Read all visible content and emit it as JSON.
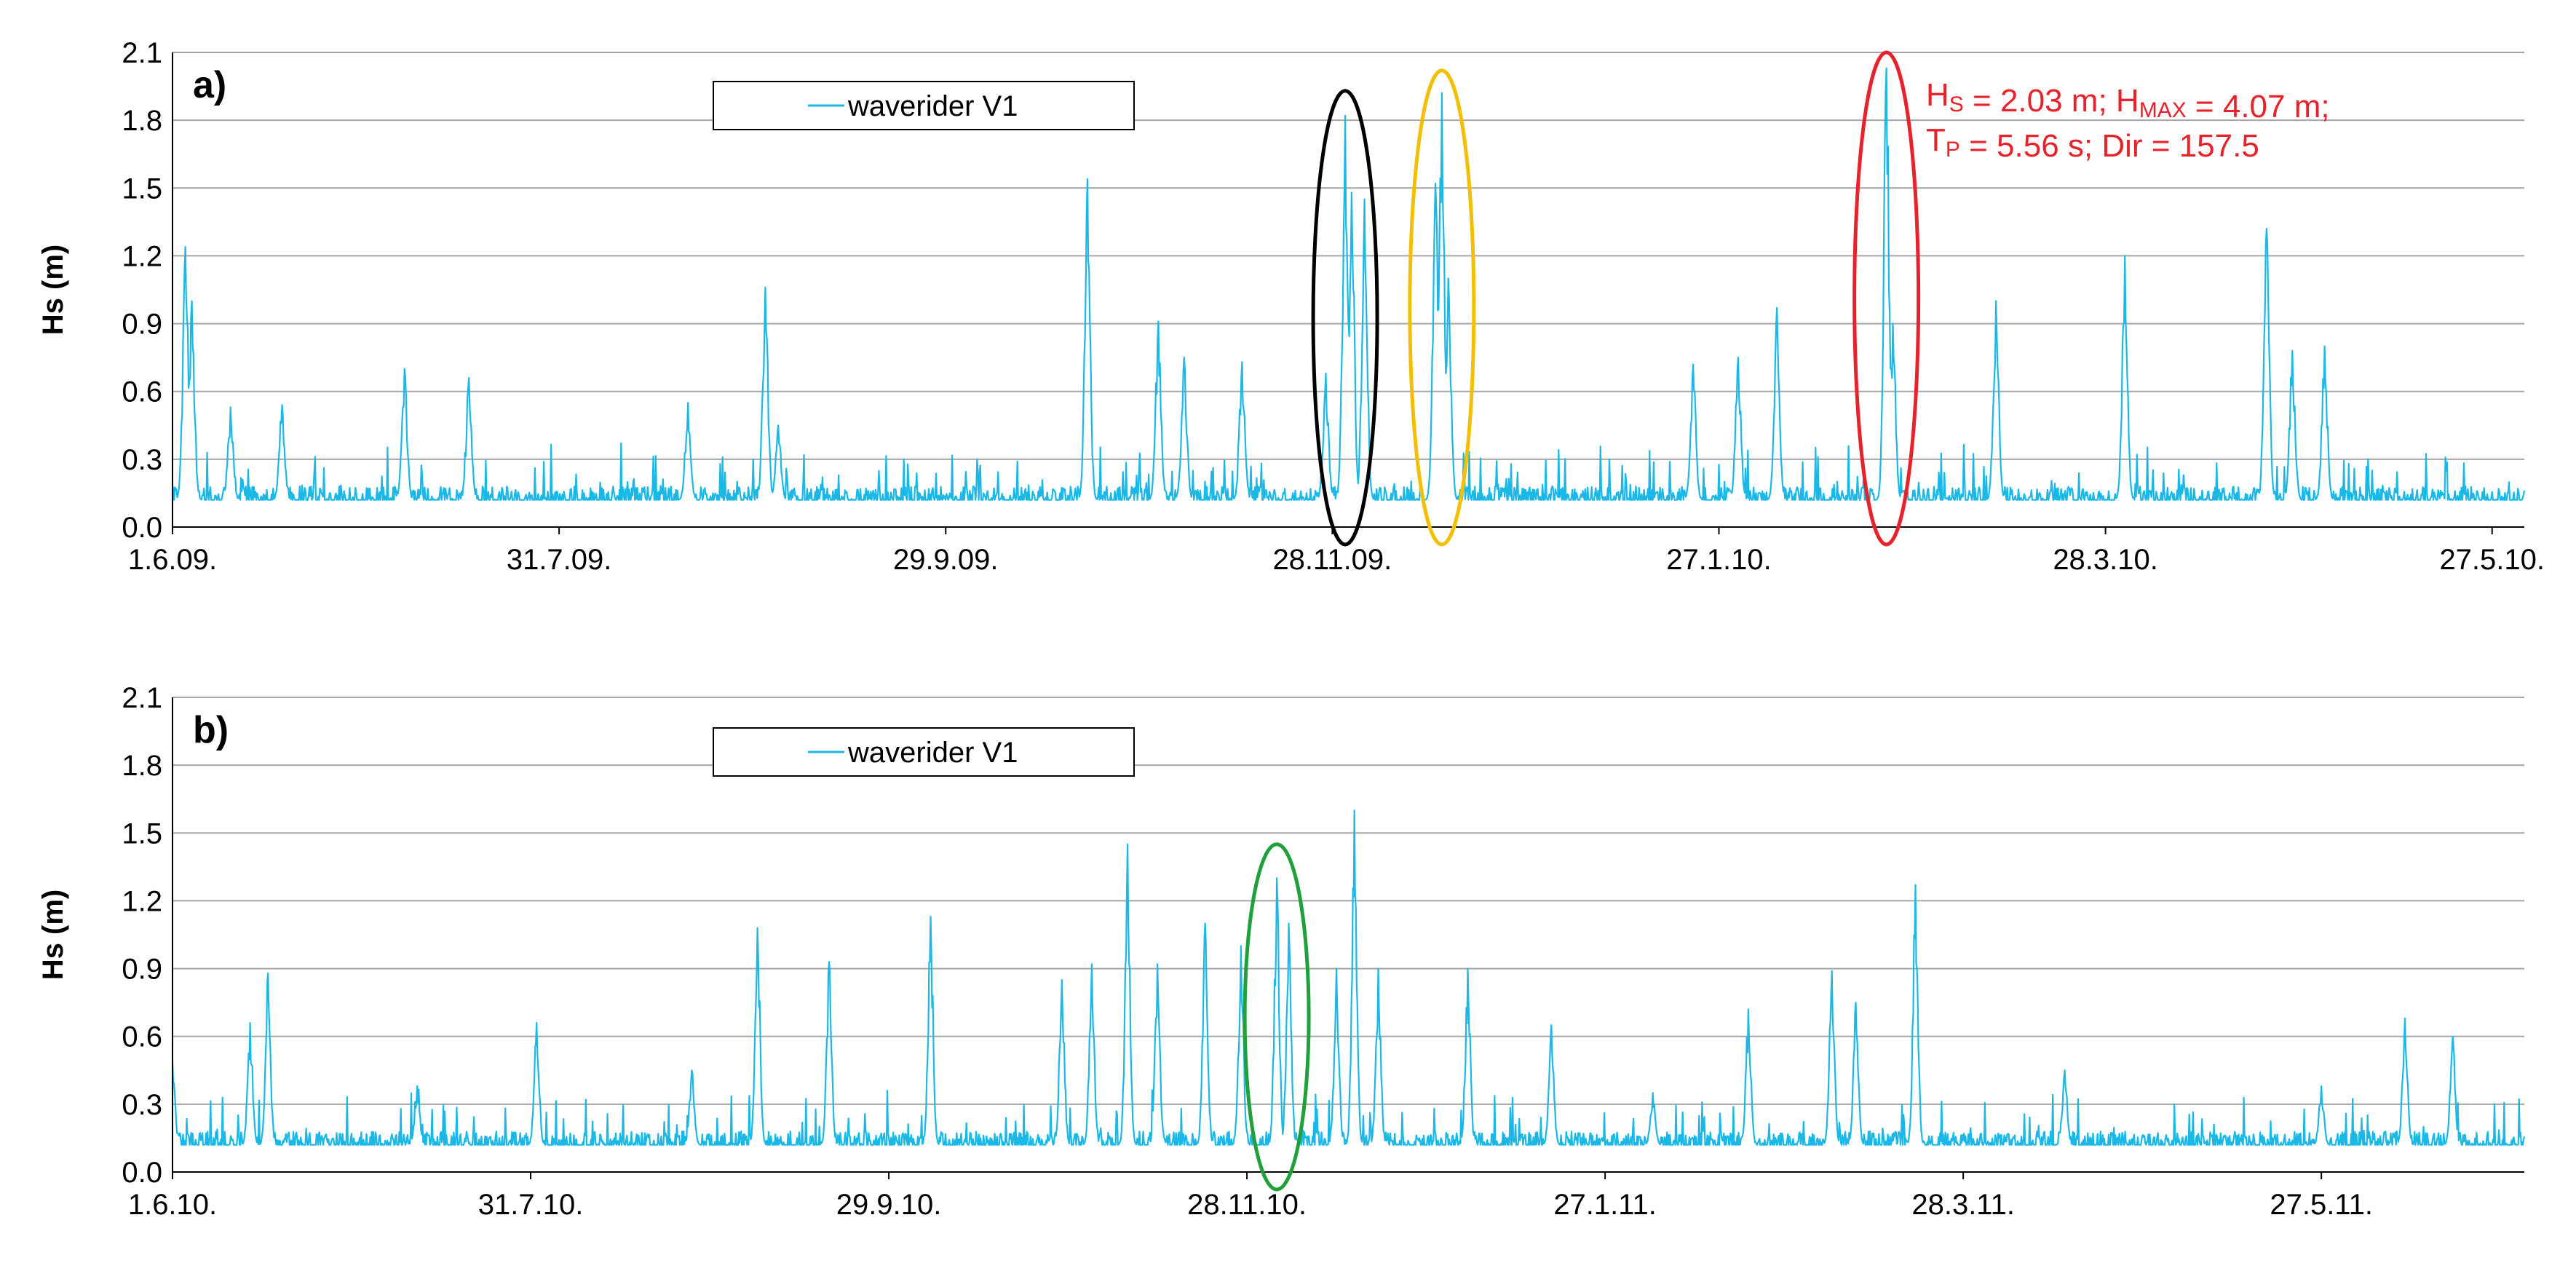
{
  "chart_data": [
    {
      "panel_label": "a)",
      "type": "line",
      "ylabel": "Hs (m)",
      "yticks": [
        "0.0",
        "0.3",
        "0.6",
        "0.9",
        "1.2",
        "1.5",
        "1.8",
        "2.1"
      ],
      "ylim": [
        0,
        2.1
      ],
      "xlim": [
        "2009-06-01",
        "2010-06-01"
      ],
      "xticks": [
        {
          "label": "1.6.09.",
          "date": "2009-06-01"
        },
        {
          "label": "31.7.09.",
          "date": "2009-07-31"
        },
        {
          "label": "29.9.09.",
          "date": "2009-09-29"
        },
        {
          "label": "28.11.09.",
          "date": "2009-11-28"
        },
        {
          "label": "27.1.10.",
          "date": "2010-01-27"
        },
        {
          "label": "28.3.10.",
          "date": "2010-03-28"
        },
        {
          "label": "27.5.10.",
          "date": "2010-05-27"
        }
      ],
      "grid": "horizontal",
      "legend": {
        "label": "waverider V1",
        "position": "top-left"
      },
      "series": [
        {
          "name": "waverider V1",
          "color": "#1ab8e6",
          "baseline_m": 0.12,
          "noise_m": 0.06
        }
      ],
      "peaks": [
        {
          "date": "2009-06-03",
          "hs": 1.24
        },
        {
          "date": "2009-06-04",
          "hs": 1.0
        },
        {
          "date": "2009-06-10",
          "hs": 0.53
        },
        {
          "date": "2009-06-18",
          "hs": 0.54
        },
        {
          "date": "2009-07-07",
          "hs": 0.7
        },
        {
          "date": "2009-07-17",
          "hs": 0.66
        },
        {
          "date": "2009-08-20",
          "hs": 0.55
        },
        {
          "date": "2009-09-01",
          "hs": 1.06
        },
        {
          "date": "2009-09-03",
          "hs": 0.45
        },
        {
          "date": "2009-10-21",
          "hs": 1.54
        },
        {
          "date": "2009-11-01",
          "hs": 0.91
        },
        {
          "date": "2009-11-05",
          "hs": 0.75
        },
        {
          "date": "2009-11-14",
          "hs": 0.73
        },
        {
          "date": "2009-11-27",
          "hs": 0.68
        },
        {
          "date": "2009-11-30",
          "hs": 1.82
        },
        {
          "date": "2009-12-01",
          "hs": 1.48
        },
        {
          "date": "2009-12-03",
          "hs": 1.45
        },
        {
          "date": "2009-12-14",
          "hs": 1.52
        },
        {
          "date": "2009-12-15",
          "hs": 1.92
        },
        {
          "date": "2009-12-16",
          "hs": 1.1
        },
        {
          "date": "2010-01-23",
          "hs": 0.72
        },
        {
          "date": "2010-01-30",
          "hs": 0.75
        },
        {
          "date": "2010-02-05",
          "hs": 0.97
        },
        {
          "date": "2010-02-22",
          "hs": 2.03
        },
        {
          "date": "2010-02-23",
          "hs": 0.9
        },
        {
          "date": "2010-03-11",
          "hs": 1.0
        },
        {
          "date": "2010-03-31",
          "hs": 1.2
        },
        {
          "date": "2010-04-22",
          "hs": 1.32
        },
        {
          "date": "2010-04-26",
          "hs": 0.78
        },
        {
          "date": "2010-05-01",
          "hs": 0.8
        }
      ],
      "annotations": [
        {
          "text_lines": [
            "Hs = 2.03 m; HMAX = 4.07 m;",
            "TP = 5.56 s; Dir = 157.5"
          ],
          "color": "#e8222a"
        }
      ],
      "highlights": [
        {
          "date": "2009-11-30",
          "hs_range": [
            0,
            1.93
          ],
          "color": "#000000"
        },
        {
          "date": "2009-12-15",
          "hs_range": [
            0,
            2.02
          ],
          "color": "#f2c000"
        },
        {
          "date": "2010-02-22",
          "hs_range": [
            0,
            2.1
          ],
          "color": "#e8222a"
        }
      ]
    },
    {
      "panel_label": "b)",
      "type": "line",
      "ylabel": "Hs (m)",
      "yticks": [
        "0.0",
        "0.3",
        "0.6",
        "0.9",
        "1.2",
        "1.5",
        "1.8",
        "2.1"
      ],
      "ylim": [
        0,
        2.1
      ],
      "xlim": [
        "2010-06-01",
        "2011-06-30"
      ],
      "xticks": [
        {
          "label": "1.6.10.",
          "date": "2010-06-01"
        },
        {
          "label": "31.7.10.",
          "date": "2010-07-31"
        },
        {
          "label": "29.9.10.",
          "date": "2010-09-29"
        },
        {
          "label": "28.11.10.",
          "date": "2010-11-28"
        },
        {
          "label": "27.1.11.",
          "date": "2011-01-27"
        },
        {
          "label": "28.3.11.",
          "date": "2011-03-28"
        },
        {
          "label": "27.5.11.",
          "date": "2011-05-27"
        }
      ],
      "grid": "horizontal",
      "legend": {
        "label": "waverider V1",
        "position": "top-left"
      },
      "series": [
        {
          "name": "waverider V1",
          "color": "#1ab8e6",
          "baseline_m": 0.12,
          "noise_m": 0.06
        }
      ],
      "peaks": [
        {
          "date": "2010-06-01",
          "hs": 0.48
        },
        {
          "date": "2010-06-14",
          "hs": 0.66
        },
        {
          "date": "2010-06-17",
          "hs": 0.88
        },
        {
          "date": "2010-07-12",
          "hs": 0.38
        },
        {
          "date": "2010-08-01",
          "hs": 0.66
        },
        {
          "date": "2010-08-27",
          "hs": 0.45
        },
        {
          "date": "2010-09-07",
          "hs": 1.08
        },
        {
          "date": "2010-09-19",
          "hs": 0.93
        },
        {
          "date": "2010-10-06",
          "hs": 1.13
        },
        {
          "date": "2010-10-28",
          "hs": 0.85
        },
        {
          "date": "2010-11-02",
          "hs": 0.92
        },
        {
          "date": "2010-11-08",
          "hs": 1.45
        },
        {
          "date": "2010-11-13",
          "hs": 0.92
        },
        {
          "date": "2010-11-21",
          "hs": 1.1
        },
        {
          "date": "2010-11-27",
          "hs": 1.0
        },
        {
          "date": "2010-12-03",
          "hs": 1.3
        },
        {
          "date": "2010-12-05",
          "hs": 1.1
        },
        {
          "date": "2010-12-13",
          "hs": 0.9
        },
        {
          "date": "2010-12-16",
          "hs": 1.6
        },
        {
          "date": "2010-12-20",
          "hs": 0.9
        },
        {
          "date": "2011-01-04",
          "hs": 0.9
        },
        {
          "date": "2011-01-18",
          "hs": 0.65
        },
        {
          "date": "2011-02-04",
          "hs": 0.35
        },
        {
          "date": "2011-02-20",
          "hs": 0.72
        },
        {
          "date": "2011-03-06",
          "hs": 0.89
        },
        {
          "date": "2011-03-10",
          "hs": 0.75
        },
        {
          "date": "2011-03-20",
          "hs": 1.27
        },
        {
          "date": "2011-04-14",
          "hs": 0.45
        },
        {
          "date": "2011-05-27",
          "hs": 0.38
        },
        {
          "date": "2011-06-10",
          "hs": 0.68
        },
        {
          "date": "2011-06-18",
          "hs": 0.6
        }
      ],
      "highlights": [
        {
          "date": "2010-12-03",
          "hs_range": [
            0,
            1.45
          ],
          "color": "#1fa03a"
        }
      ]
    }
  ]
}
